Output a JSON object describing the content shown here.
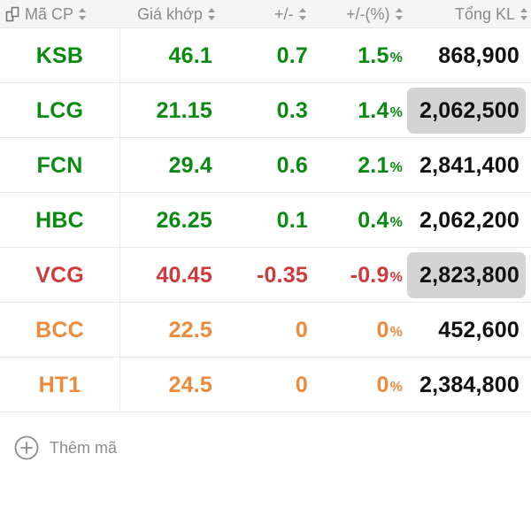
{
  "header": {
    "columns": [
      {
        "label": "Mã CP",
        "icon": "swap-columns-icon"
      },
      {
        "label": "Giá khớp"
      },
      {
        "label": "+/-"
      },
      {
        "label": "+/-(%)"
      },
      {
        "label": "Tổng KL"
      }
    ]
  },
  "colors": {
    "up": "#0b8a12",
    "down": "#cf3a3a",
    "ref": "#ee8a3c",
    "highlight_bg": "#d4d4d4"
  },
  "rows": [
    {
      "symbol": "KSB",
      "price": "46.1",
      "change": "0.7",
      "pct": "1.5",
      "pct_sign": "%",
      "volume": "868,900",
      "status": "up",
      "highlighted": false
    },
    {
      "symbol": "LCG",
      "price": "21.15",
      "change": "0.3",
      "pct": "1.4",
      "pct_sign": "%",
      "volume": "2,062,500",
      "status": "up",
      "highlighted": true
    },
    {
      "symbol": "FCN",
      "price": "29.4",
      "change": "0.6",
      "pct": "2.1",
      "pct_sign": "%",
      "volume": "2,841,400",
      "status": "up",
      "highlighted": false
    },
    {
      "symbol": "HBC",
      "price": "26.25",
      "change": "0.1",
      "pct": "0.4",
      "pct_sign": "%",
      "volume": "2,062,200",
      "status": "up",
      "highlighted": false
    },
    {
      "symbol": "VCG",
      "price": "40.45",
      "change": "-0.35",
      "pct": "-0.9",
      "pct_sign": "%",
      "volume": "2,823,800",
      "status": "down",
      "highlighted": true
    },
    {
      "symbol": "BCC",
      "price": "22.5",
      "change": "0",
      "pct": "0",
      "pct_sign": "%",
      "volume": "452,600",
      "status": "ref",
      "highlighted": false
    },
    {
      "symbol": "HT1",
      "price": "24.5",
      "change": "0",
      "pct": "0",
      "pct_sign": "%",
      "volume": "2,384,800",
      "status": "ref",
      "highlighted": false
    }
  ],
  "add_symbol": {
    "label": "Thêm mã",
    "icon": "plus-circle-icon"
  }
}
